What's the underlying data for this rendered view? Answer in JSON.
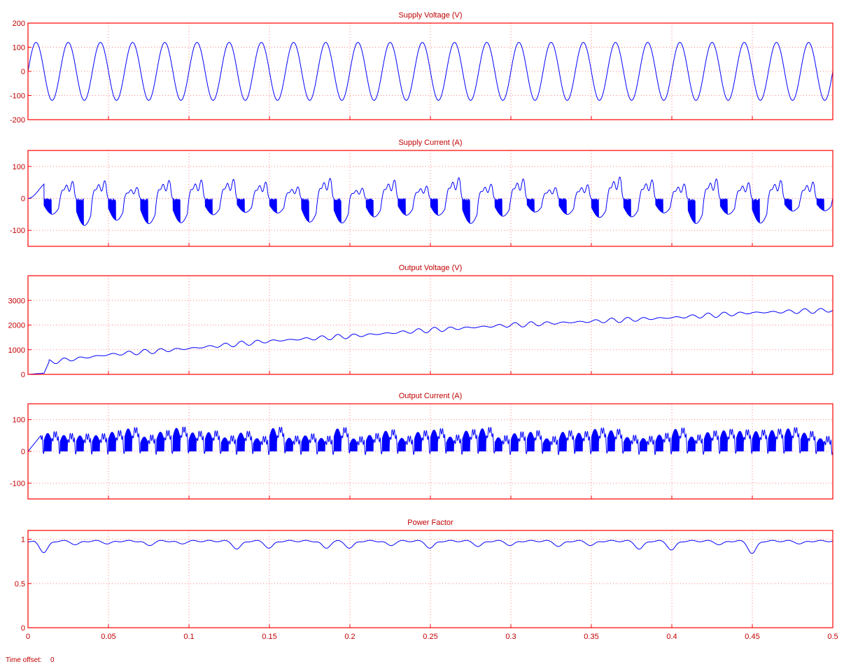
{
  "colors": {
    "axis": "#ff0000",
    "grid": "#ff8080",
    "text": "#c00000",
    "trace": "#0000ff"
  },
  "footer": {
    "time_offset_label": "Time offset:",
    "time_offset_value": "0"
  },
  "chart_data": [
    {
      "type": "line",
      "title": "Supply Voltage (V)",
      "xlim": [
        0,
        0.5
      ],
      "ylim": [
        -200,
        200
      ],
      "yticks": [
        -200,
        -100,
        0,
        100,
        200
      ],
      "ytick_labels": [
        "-200",
        "-100",
        "0",
        "100",
        "200"
      ],
      "grid": true,
      "series": [
        {
          "shape": "sine",
          "amplitude": 120,
          "frequency_hz": 50,
          "phase": 0
        }
      ]
    },
    {
      "type": "line",
      "title": "Supply Current (A)",
      "xlim": [
        0,
        0.5
      ],
      "ylim": [
        -150,
        150
      ],
      "yticks": [
        -100,
        0,
        100
      ],
      "ytick_labels": [
        "-100",
        "0",
        "100"
      ],
      "grid": true,
      "series": [
        {
          "shape": "chopped_half_waves",
          "frequency_hz": 50,
          "peak_range": [
            40,
            100
          ]
        }
      ]
    },
    {
      "type": "line",
      "title": "Output Voltage (V)",
      "xlim": [
        0,
        0.5
      ],
      "ylim": [
        0,
        4000
      ],
      "yticks": [
        0,
        1000,
        2000,
        3000
      ],
      "ytick_labels": [
        "0",
        "1000",
        "2000",
        "3000"
      ],
      "grid": true,
      "series": [
        {
          "shape": "ramp_with_ripple",
          "x": [
            0,
            0.01,
            0.013,
            0.05,
            0.1,
            0.15,
            0.2,
            0.25,
            0.3,
            0.35,
            0.4,
            0.45,
            0.5
          ],
          "y": [
            0,
            50,
            500,
            800,
            1050,
            1350,
            1550,
            1800,
            2000,
            2150,
            2300,
            2500,
            2600
          ],
          "ripple_hz": 100,
          "ripple_amplitude": 100
        }
      ]
    },
    {
      "type": "line",
      "title": "Output Current (A)",
      "xlim": [
        0,
        0.5
      ],
      "ylim": [
        -150,
        150
      ],
      "yticks": [
        -100,
        0,
        100
      ],
      "ytick_labels": [
        "-100",
        "0",
        "100"
      ],
      "grid": true,
      "series": [
        {
          "shape": "rectified_chopped",
          "frequency_hz": 100,
          "peak_range": [
            50,
            95
          ]
        }
      ]
    },
    {
      "type": "line",
      "title": "Power Factor",
      "xlim": [
        0,
        0.5
      ],
      "ylim": [
        0,
        1.1
      ],
      "yticks": [
        0,
        0.5,
        1
      ],
      "ytick_labels": [
        "0",
        "0.5",
        "1"
      ],
      "xticks": [
        0,
        0.05,
        0.1,
        0.15,
        0.2,
        0.25,
        0.3,
        0.35,
        0.4,
        0.45,
        0.5
      ],
      "xtick_labels": [
        "0",
        "0.05",
        "0.1",
        "0.15",
        "0.2",
        "0.25",
        "0.3",
        "0.35",
        "0.4",
        "0.45",
        "0.5"
      ],
      "grid": true,
      "series": [
        {
          "shape": "near_unity_with_dips",
          "base": 0.98,
          "dips_x": [
            0.01,
            0.03,
            0.05,
            0.075,
            0.095,
            0.13,
            0.15,
            0.185,
            0.2,
            0.225,
            0.25,
            0.28,
            0.3,
            0.33,
            0.35,
            0.38,
            0.4,
            0.43,
            0.45,
            0.48
          ],
          "dips_y": [
            0.85,
            0.94,
            0.95,
            0.93,
            0.95,
            0.89,
            0.9,
            0.9,
            0.9,
            0.93,
            0.9,
            0.92,
            0.93,
            0.92,
            0.93,
            0.89,
            0.88,
            0.94,
            0.84,
            0.95
          ]
        }
      ]
    }
  ]
}
